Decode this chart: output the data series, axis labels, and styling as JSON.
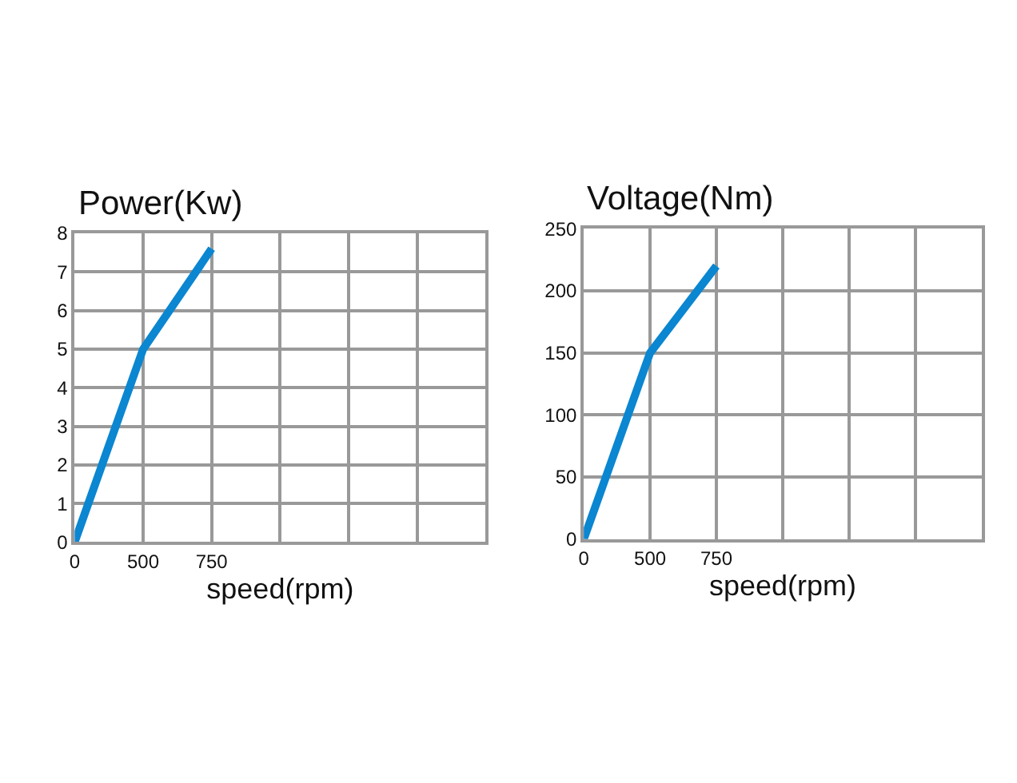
{
  "chart_data": [
    {
      "type": "line",
      "title": "Power(Kw)",
      "xlabel": "speed(rpm)",
      "categories": [
        "0",
        "500",
        "750",
        null,
        null,
        null,
        null
      ],
      "series": [
        {
          "color": "#0b86d1",
          "values": [
            0,
            5,
            7.6,
            null,
            null,
            null,
            null
          ]
        }
      ],
      "ylim": [
        0,
        8
      ],
      "yticks": [
        0,
        1,
        2,
        3,
        4,
        5,
        6,
        7,
        8
      ],
      "grid": true,
      "marker": "none",
      "line_style": "solid"
    },
    {
      "type": "line",
      "title": "Voltage(Nm)",
      "xlabel": "speed(rpm)",
      "categories": [
        "0",
        "500",
        "750",
        null,
        null,
        null,
        null
      ],
      "series": [
        {
          "color": "#0b86d1",
          "values": [
            0,
            150,
            220,
            null,
            null,
            null,
            null
          ]
        }
      ],
      "ylim": [
        0,
        250
      ],
      "yticks": [
        0,
        50,
        100,
        150,
        200,
        250
      ],
      "grid": true,
      "marker": "none",
      "line_style": "solid"
    }
  ]
}
